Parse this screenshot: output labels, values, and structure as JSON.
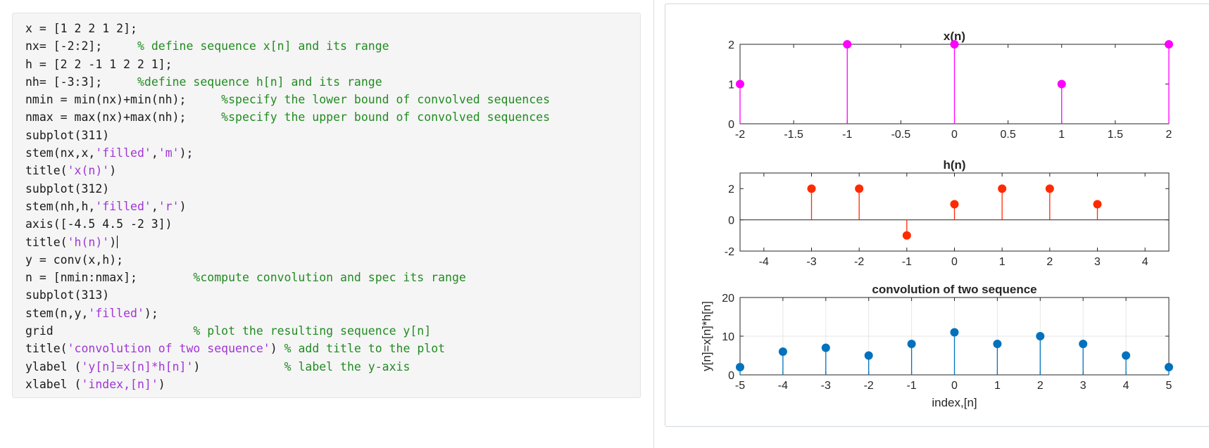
{
  "code": {
    "lines": [
      [
        {
          "t": "plain",
          "s": "x = [1 2 2 1 2];"
        }
      ],
      [
        {
          "t": "plain",
          "s": "nx= [-2:2];     "
        },
        {
          "t": "com",
          "s": "% define sequence x[n] and its range"
        }
      ],
      [
        {
          "t": "plain",
          "s": "h = [2 2 -1 1 2 2 1];"
        }
      ],
      [
        {
          "t": "plain",
          "s": "nh= [-3:3];     "
        },
        {
          "t": "com",
          "s": "%define sequence h[n] and its range"
        }
      ],
      [
        {
          "t": "plain",
          "s": "nmin = min(nx)+min(nh);     "
        },
        {
          "t": "com",
          "s": "%specify the lower bound of convolved sequences"
        }
      ],
      [
        {
          "t": "plain",
          "s": "nmax = max(nx)+max(nh);     "
        },
        {
          "t": "com",
          "s": "%specify the upper bound of convolved sequences"
        }
      ],
      [
        {
          "t": "plain",
          "s": "subplot(311)"
        }
      ],
      [
        {
          "t": "plain",
          "s": "stem(nx,x,"
        },
        {
          "t": "str",
          "s": "'filled'"
        },
        {
          "t": "plain",
          "s": ","
        },
        {
          "t": "str",
          "s": "'m'"
        },
        {
          "t": "plain",
          "s": ");"
        }
      ],
      [
        {
          "t": "plain",
          "s": "title("
        },
        {
          "t": "str",
          "s": "'x(n)'"
        },
        {
          "t": "plain",
          "s": ")"
        }
      ],
      [
        {
          "t": "plain",
          "s": "subplot(312)"
        }
      ],
      [
        {
          "t": "plain",
          "s": "stem(nh,h,"
        },
        {
          "t": "str",
          "s": "'filled'"
        },
        {
          "t": "plain",
          "s": ","
        },
        {
          "t": "str",
          "s": "'r'"
        },
        {
          "t": "plain",
          "s": ")"
        }
      ],
      [
        {
          "t": "plain",
          "s": "axis([-4.5 4.5 -2 3])"
        }
      ],
      [
        {
          "t": "plain",
          "s": "title("
        },
        {
          "t": "str",
          "s": "'h(n)'"
        },
        {
          "t": "plain",
          "s": ")"
        },
        {
          "t": "caret",
          "s": ""
        }
      ],
      [
        {
          "t": "plain",
          "s": "y = conv(x,h);"
        }
      ],
      [
        {
          "t": "plain",
          "s": "n = [nmin:nmax];        "
        },
        {
          "t": "com",
          "s": "%compute convolution and spec its range"
        }
      ],
      [
        {
          "t": "plain",
          "s": "subplot(313)"
        }
      ],
      [
        {
          "t": "plain",
          "s": "stem(n,y,"
        },
        {
          "t": "str",
          "s": "'filled'"
        },
        {
          "t": "plain",
          "s": ");"
        }
      ],
      [
        {
          "t": "plain",
          "s": "grid                    "
        },
        {
          "t": "com",
          "s": "% plot the resulting sequence y[n]"
        }
      ],
      [
        {
          "t": "plain",
          "s": "title("
        },
        {
          "t": "str",
          "s": "'convolution of two sequence'"
        },
        {
          "t": "plain",
          "s": ") "
        },
        {
          "t": "com",
          "s": "% add title to the plot"
        }
      ],
      [
        {
          "t": "plain",
          "s": "ylabel ("
        },
        {
          "t": "str",
          "s": "'y[n]=x[n]*h[n]'"
        },
        {
          "t": "plain",
          "s": ")            "
        },
        {
          "t": "com",
          "s": "% label the y-axis"
        }
      ],
      [
        {
          "t": "plain",
          "s": "xlabel ("
        },
        {
          "t": "str",
          "s": "'index,[n]'"
        },
        {
          "t": "plain",
          "s": ")"
        }
      ]
    ]
  },
  "colors": {
    "code_string": "#a035d6",
    "code_comment": "#228b22",
    "stem_x": "#ff00ff",
    "stem_h": "#ff2a00",
    "stem_y": "#0072bd"
  },
  "chart_data": [
    {
      "type": "stem",
      "title": "x(n)",
      "x": [
        -2,
        -1,
        0,
        1,
        2
      ],
      "y": [
        1,
        2,
        2,
        1,
        2
      ],
      "xlim": [
        -2,
        2
      ],
      "ylim": [
        0,
        2
      ],
      "xticks": [
        "-2",
        "-1.5",
        "-1",
        "-0.5",
        "0",
        "0.5",
        "1",
        "1.5",
        "2"
      ],
      "yticks": [
        "0",
        "1",
        "2"
      ],
      "color": "#ff00ff",
      "grid": false
    },
    {
      "type": "stem",
      "title": "h(n)",
      "x": [
        -3,
        -2,
        -1,
        0,
        1,
        2,
        3
      ],
      "y": [
        2,
        2,
        -1,
        1,
        2,
        2,
        1
      ],
      "xlim": [
        -4.5,
        4.5
      ],
      "ylim": [
        -2,
        3
      ],
      "xticks": [
        "-4",
        "-3",
        "-2",
        "-1",
        "0",
        "1",
        "2",
        "3",
        "4"
      ],
      "yticks": [
        "-2",
        "0",
        "2"
      ],
      "color": "#ff2a00",
      "grid": false
    },
    {
      "type": "stem",
      "title": "convolution of two sequence",
      "xlabel": "index,[n]",
      "ylabel": "y[n]=x[n]*h[n]",
      "x": [
        -5,
        -4,
        -3,
        -2,
        -1,
        0,
        1,
        2,
        3,
        4,
        5
      ],
      "y": [
        2,
        6,
        7,
        5,
        8,
        11,
        8,
        10,
        8,
        5,
        2
      ],
      "xlim": [
        -5,
        5
      ],
      "ylim": [
        0,
        20
      ],
      "xticks": [
        "-5",
        "-4",
        "-3",
        "-2",
        "-1",
        "0",
        "1",
        "2",
        "3",
        "4",
        "5"
      ],
      "yticks": [
        "0",
        "10",
        "20"
      ],
      "color": "#0072bd",
      "grid": true
    }
  ]
}
